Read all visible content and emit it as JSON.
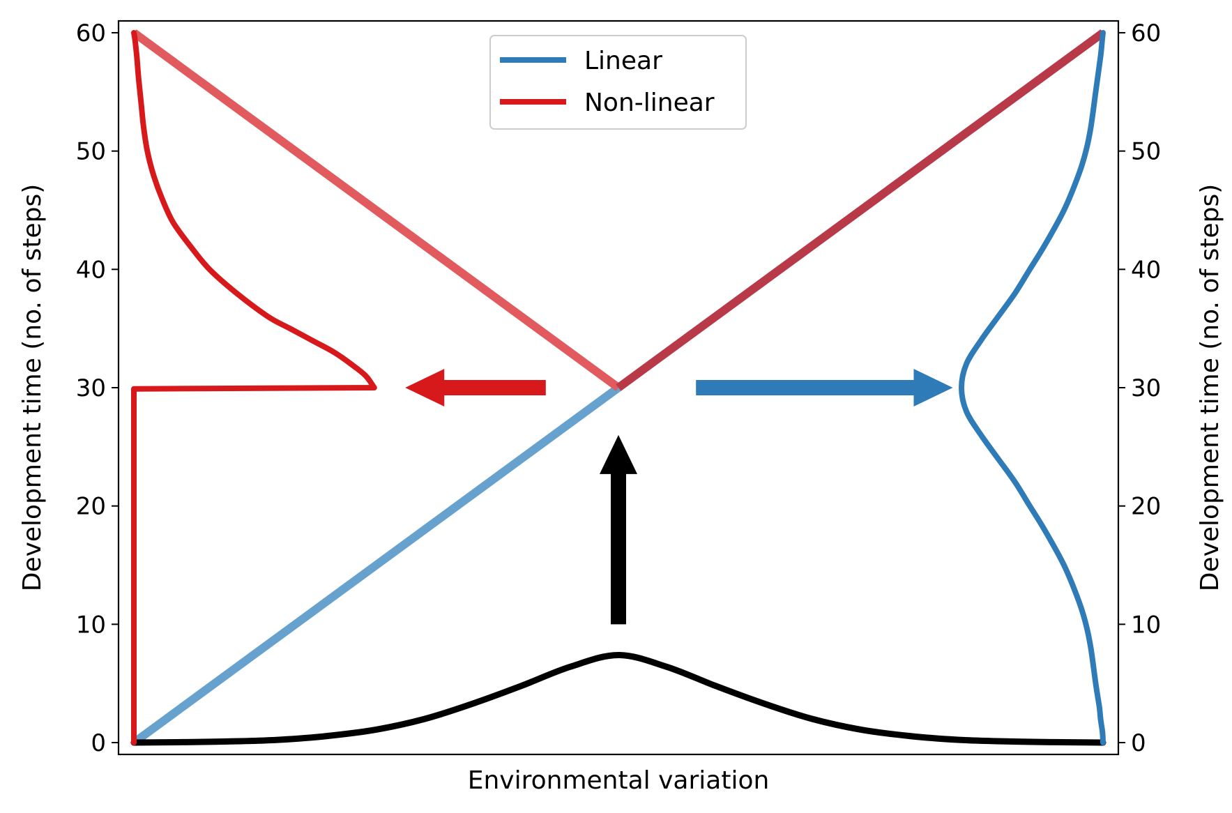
{
  "chart_data": {
    "type": "line",
    "xlabel": "Environmental variation",
    "ylabel_left": "Development time (no. of steps)",
    "ylabel_right": "Development time (no. of steps)",
    "x_ticks_shown": false,
    "x_range": [
      -1,
      1
    ],
    "ylim": [
      -1,
      61
    ],
    "y_ticks": [
      "0",
      "10",
      "20",
      "30",
      "40",
      "50",
      "60"
    ],
    "y_tick_values": [
      0,
      10,
      20,
      30,
      40,
      50,
      60
    ],
    "grid": false,
    "legend": {
      "placement": "top-center",
      "entries": [
        {
          "label": "Linear",
          "color": "#2e7bb8"
        },
        {
          "label": "Non-linear",
          "color": "#d7191c"
        }
      ]
    },
    "colors": {
      "linear": "#2e7bb8",
      "nonlinear": "#d7191c",
      "linear_light": "#66a2cd",
      "nonlinear_light": "#e15a5d",
      "overlap": "#b83a48",
      "environment": "#000000"
    },
    "series": [
      {
        "role": "linear-mapping-diagonal",
        "x": [
          -1,
          0
        ],
        "y": [
          0,
          30
        ]
      },
      {
        "role": "nonlinear-mapping-diagonal",
        "x": [
          0,
          -1
        ],
        "y": [
          30,
          60
        ]
      },
      {
        "role": "overlap-diagonal",
        "x": [
          0,
          1
        ],
        "y": [
          30,
          60
        ]
      },
      {
        "role": "environment-distribution",
        "x": [
          -1,
          -0.9,
          -0.8,
          -0.7,
          -0.6,
          -0.5,
          -0.4,
          -0.3,
          -0.2,
          -0.1,
          0,
          0.1,
          0.2,
          0.3,
          0.4,
          0.5,
          0.6,
          0.7,
          0.8,
          0.9,
          1
        ],
        "y": [
          0.0,
          0.04,
          0.1,
          0.24,
          0.56,
          1.1,
          2.0,
          3.3,
          4.8,
          6.4,
          7.4,
          6.4,
          4.8,
          3.3,
          2.0,
          1.1,
          0.56,
          0.24,
          0.1,
          0.04,
          0.0
        ]
      },
      {
        "role": "linear-phenotype-distribution",
        "t": [
          0,
          0.5,
          1,
          2,
          3,
          5,
          8,
          10,
          12,
          15,
          18,
          20,
          22,
          24,
          26,
          28,
          30,
          32,
          34,
          36,
          38,
          40,
          42,
          45,
          48,
          50,
          52,
          55,
          58,
          59.5,
          60
        ],
        "density": [
          0.0,
          0.001,
          0.003,
          0.01,
          0.015,
          0.03,
          0.05,
          0.07,
          0.1,
          0.16,
          0.24,
          0.3,
          0.36,
          0.43,
          0.5,
          0.56,
          0.58,
          0.56,
          0.5,
          0.43,
          0.36,
          0.3,
          0.24,
          0.16,
          0.1,
          0.07,
          0.05,
          0.03,
          0.01,
          0.003,
          0.0
        ]
      },
      {
        "role": "nonlinear-phenotype-distribution",
        "t": [
          0,
          29.9,
          30,
          31,
          32,
          33,
          34,
          35,
          36,
          38,
          40,
          42,
          44,
          46,
          48,
          50,
          52,
          54,
          56,
          58,
          59.5,
          60
        ],
        "density": [
          0.0,
          0.0,
          0.985,
          0.95,
          0.89,
          0.82,
          0.73,
          0.64,
          0.55,
          0.42,
          0.31,
          0.23,
          0.16,
          0.115,
          0.08,
          0.055,
          0.04,
          0.03,
          0.02,
          0.012,
          0.004,
          0.0
        ]
      }
    ],
    "annotations": [
      {
        "name": "environment-arrow",
        "direction": "up",
        "from": [
          0,
          10
        ],
        "to": [
          0,
          26
        ],
        "color": "#000000"
      },
      {
        "name": "linear-arrow",
        "direction": "right",
        "from": [
          0.16,
          30
        ],
        "to": [
          0.69,
          30
        ],
        "color": "#2e7bb8"
      },
      {
        "name": "nonlinear-arrow",
        "direction": "left",
        "from": [
          -0.15,
          30
        ],
        "to": [
          -0.44,
          30
        ],
        "color": "#d7191c"
      }
    ]
  }
}
